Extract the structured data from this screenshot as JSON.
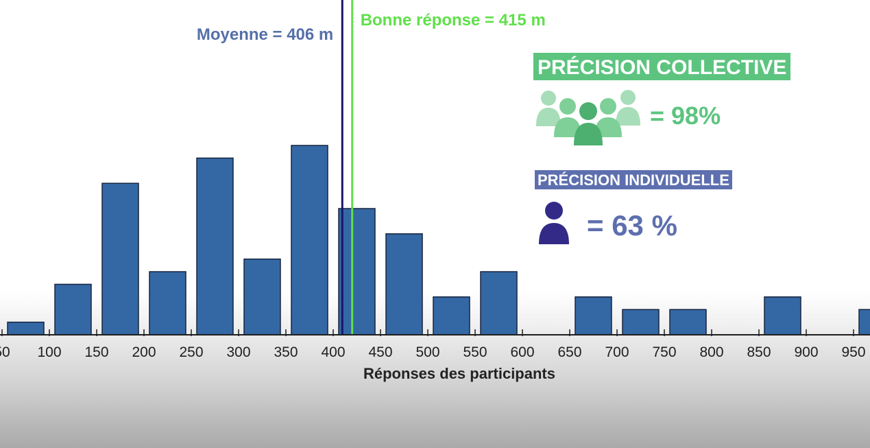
{
  "chart_data": {
    "type": "bar",
    "xlabel": "Réponses des participants",
    "x_ticks": [
      50,
      100,
      150,
      200,
      250,
      300,
      350,
      400,
      450,
      500,
      550,
      600,
      650,
      700,
      750,
      800,
      850,
      900,
      950
    ],
    "x_tick_labels": [
      "50",
      "100",
      "150",
      "200",
      "250",
      "300",
      "350",
      "400",
      "450",
      "500",
      "550",
      "600",
      "650",
      "700",
      "750",
      "800",
      "850",
      "900",
      "950"
    ],
    "bin_width": 50,
    "bins": [
      {
        "start": 50,
        "value": 1
      },
      {
        "start": 100,
        "value": 4
      },
      {
        "start": 150,
        "value": 12
      },
      {
        "start": 200,
        "value": 5
      },
      {
        "start": 250,
        "value": 14
      },
      {
        "start": 300,
        "value": 6
      },
      {
        "start": 350,
        "value": 15
      },
      {
        "start": 400,
        "value": 10
      },
      {
        "start": 450,
        "value": 8
      },
      {
        "start": 500,
        "value": 3
      },
      {
        "start": 550,
        "value": 5
      },
      {
        "start": 600,
        "value": 0
      },
      {
        "start": 650,
        "value": 3
      },
      {
        "start": 700,
        "value": 2
      },
      {
        "start": 750,
        "value": 2
      },
      {
        "start": 800,
        "value": 0
      },
      {
        "start": 850,
        "value": 3
      },
      {
        "start": 900,
        "value": 0
      },
      {
        "start": 950,
        "value": 2
      }
    ],
    "xlim": [
      45,
      960
    ],
    "ylim": [
      0,
      15
    ],
    "grid": false,
    "reference_lines": [
      {
        "label": "Moyenne = 406 m",
        "value": 406,
        "color": "#16166e",
        "label_color": "#5570a8",
        "label_side": "left"
      },
      {
        "label": "Bonne réponse = 415 m",
        "value": 415,
        "color": "#5fe04a",
        "label_color": "#5fe04a",
        "label_side": "right"
      }
    ],
    "colors": {
      "bar_fill": "#3468a4",
      "bar_stroke": "#16243f",
      "axis": "#1e1e1e"
    }
  },
  "panel": {
    "collective": {
      "label": "PRÉCISION COLLECTIVE",
      "value": "= 98%",
      "color": "#5cc47f",
      "icon": "group-people-icon"
    },
    "individual": {
      "label": "PRÉCISION INDIVIDUELLE",
      "value": "= 63 %",
      "color": "#5d6fae",
      "icon": "person-icon"
    }
  }
}
